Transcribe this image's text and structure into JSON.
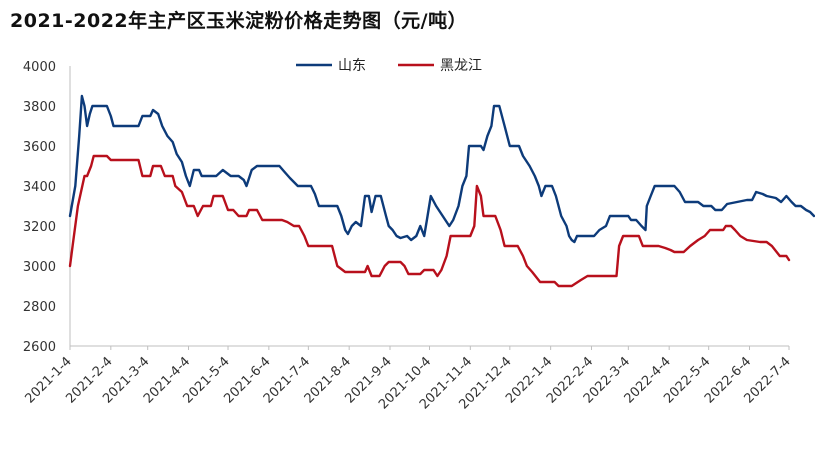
{
  "chart_data": {
    "type": "line",
    "title": "2021-2022年主产区玉米淀粉价格走势图（元/吨）",
    "ylim": [
      2600,
      4000
    ],
    "y_ticks": [
      2600,
      2800,
      3000,
      3200,
      3400,
      3600,
      3800,
      4000
    ],
    "x_range": [
      "2021-01-04",
      "2022-07-04"
    ],
    "x_ticks": [
      "2021-1-4",
      "2021-2-4",
      "2021-3-4",
      "2021-4-4",
      "2021-5-4",
      "2021-6-4",
      "2021-7-4",
      "2021-8-4",
      "2021-9-4",
      "2021-10-4",
      "2021-11-4",
      "2021-12-4",
      "2022-1-4",
      "2022-2-4",
      "2022-3-4",
      "2022-4-4",
      "2022-5-4",
      "2022-6-4",
      "2022-7-4"
    ],
    "grid": false,
    "legend_position": "top-center",
    "series": [
      {
        "name": "山东",
        "color": "#0d3b7a",
        "points": [
          [
            "2021-01-04",
            3250
          ],
          [
            "2021-01-08",
            3400
          ],
          [
            "2021-01-11",
            3650
          ],
          [
            "2021-01-13",
            3850
          ],
          [
            "2021-01-15",
            3800
          ],
          [
            "2021-01-17",
            3700
          ],
          [
            "2021-01-19",
            3760
          ],
          [
            "2021-01-21",
            3800
          ],
          [
            "2021-02-01",
            3800
          ],
          [
            "2021-02-04",
            3750
          ],
          [
            "2021-02-06",
            3700
          ],
          [
            "2021-02-25",
            3700
          ],
          [
            "2021-02-28",
            3750
          ],
          [
            "2021-03-06",
            3750
          ],
          [
            "2021-03-08",
            3780
          ],
          [
            "2021-03-12",
            3760
          ],
          [
            "2021-03-15",
            3700
          ],
          [
            "2021-03-19",
            3650
          ],
          [
            "2021-03-23",
            3620
          ],
          [
            "2021-03-26",
            3560
          ],
          [
            "2021-03-30",
            3520
          ],
          [
            "2021-04-02",
            3450
          ],
          [
            "2021-04-05",
            3400
          ],
          [
            "2021-04-08",
            3480
          ],
          [
            "2021-04-12",
            3480
          ],
          [
            "2021-04-14",
            3450
          ],
          [
            "2021-04-25",
            3450
          ],
          [
            "2021-04-30",
            3480
          ],
          [
            "2021-05-06",
            3450
          ],
          [
            "2021-05-12",
            3450
          ],
          [
            "2021-05-16",
            3430
          ],
          [
            "2021-05-18",
            3400
          ],
          [
            "2021-05-22",
            3480
          ],
          [
            "2021-05-26",
            3500
          ],
          [
            "2021-06-12",
            3500
          ],
          [
            "2021-06-16",
            3470
          ],
          [
            "2021-06-20",
            3440
          ],
          [
            "2021-06-26",
            3400
          ],
          [
            "2021-07-06",
            3400
          ],
          [
            "2021-07-09",
            3360
          ],
          [
            "2021-07-12",
            3300
          ],
          [
            "2021-07-26",
            3300
          ],
          [
            "2021-07-29",
            3250
          ],
          [
            "2021-08-01",
            3180
          ],
          [
            "2021-08-03",
            3160
          ],
          [
            "2021-08-06",
            3200
          ],
          [
            "2021-08-09",
            3220
          ],
          [
            "2021-08-13",
            3200
          ],
          [
            "2021-08-16",
            3350
          ],
          [
            "2021-08-19",
            3350
          ],
          [
            "2021-08-21",
            3270
          ],
          [
            "2021-08-24",
            3350
          ],
          [
            "2021-08-28",
            3350
          ],
          [
            "2021-09-01",
            3250
          ],
          [
            "2021-09-03",
            3200
          ],
          [
            "2021-09-06",
            3180
          ],
          [
            "2021-09-09",
            3150
          ],
          [
            "2021-09-12",
            3140
          ],
          [
            "2021-09-17",
            3150
          ],
          [
            "2021-09-20",
            3130
          ],
          [
            "2021-09-24",
            3150
          ],
          [
            "2021-09-27",
            3200
          ],
          [
            "2021-09-30",
            3150
          ],
          [
            "2021-10-02",
            3230
          ],
          [
            "2021-10-05",
            3350
          ],
          [
            "2021-10-09",
            3300
          ],
          [
            "2021-10-14",
            3250
          ],
          [
            "2021-10-19",
            3200
          ],
          [
            "2021-10-22",
            3230
          ],
          [
            "2021-10-26",
            3300
          ],
          [
            "2021-10-29",
            3400
          ],
          [
            "2021-11-01",
            3450
          ],
          [
            "2021-11-03",
            3600
          ],
          [
            "2021-11-12",
            3600
          ],
          [
            "2021-11-14",
            3580
          ],
          [
            "2021-11-17",
            3650
          ],
          [
            "2021-11-20",
            3700
          ],
          [
            "2021-11-22",
            3800
          ],
          [
            "2021-11-26",
            3800
          ],
          [
            "2021-11-30",
            3700
          ],
          [
            "2021-12-02",
            3650
          ],
          [
            "2021-12-04",
            3600
          ],
          [
            "2021-12-11",
            3600
          ],
          [
            "2021-12-14",
            3550
          ],
          [
            "2021-12-19",
            3500
          ],
          [
            "2021-12-23",
            3450
          ],
          [
            "2021-12-26",
            3400
          ],
          [
            "2021-12-28",
            3350
          ],
          [
            "2021-12-31",
            3400
          ],
          [
            "2022-01-05",
            3400
          ],
          [
            "2022-01-08",
            3350
          ],
          [
            "2022-01-12",
            3250
          ],
          [
            "2022-01-16",
            3200
          ],
          [
            "2022-01-18",
            3150
          ],
          [
            "2022-01-20",
            3130
          ],
          [
            "2022-01-22",
            3120
          ],
          [
            "2022-01-24",
            3150
          ],
          [
            "2022-02-06",
            3150
          ],
          [
            "2022-02-10",
            3180
          ],
          [
            "2022-02-15",
            3200
          ],
          [
            "2022-02-18",
            3250
          ],
          [
            "2022-03-04",
            3250
          ],
          [
            "2022-03-06",
            3230
          ],
          [
            "2022-03-10",
            3230
          ],
          [
            "2022-03-14",
            3200
          ],
          [
            "2022-03-17",
            3180
          ],
          [
            "2022-03-18",
            3300
          ],
          [
            "2022-03-21",
            3350
          ],
          [
            "2022-03-24",
            3400
          ],
          [
            "2022-04-08",
            3400
          ],
          [
            "2022-04-12",
            3370
          ],
          [
            "2022-04-16",
            3320
          ],
          [
            "2022-04-26",
            3320
          ],
          [
            "2022-04-30",
            3300
          ],
          [
            "2022-05-06",
            3300
          ],
          [
            "2022-05-09",
            3280
          ],
          [
            "2022-05-14",
            3280
          ],
          [
            "2022-05-18",
            3310
          ],
          [
            "2022-06-02",
            3330
          ],
          [
            "2022-06-06",
            3330
          ],
          [
            "2022-06-09",
            3370
          ],
          [
            "2022-06-14",
            3360
          ],
          [
            "2022-06-17",
            3350
          ],
          [
            "2022-06-24",
            3340
          ],
          [
            "2022-06-28",
            3320
          ],
          [
            "2022-07-02",
            3350
          ],
          [
            "2022-07-06",
            3320
          ],
          [
            "2022-07-09",
            3300
          ],
          [
            "2022-07-13",
            3300
          ],
          [
            "2022-07-17",
            3280
          ],
          [
            "2022-07-20",
            3270
          ],
          [
            "2022-07-23",
            3250
          ]
        ]
      },
      {
        "name": "黑龙江",
        "color": "#b8101c",
        "points": [
          [
            "2021-01-04",
            3000
          ],
          [
            "2021-01-06",
            3100
          ],
          [
            "2021-01-10",
            3300
          ],
          [
            "2021-01-15",
            3450
          ],
          [
            "2021-01-17",
            3450
          ],
          [
            "2021-01-20",
            3500
          ],
          [
            "2021-01-22",
            3550
          ],
          [
            "2021-02-01",
            3550
          ],
          [
            "2021-02-04",
            3530
          ],
          [
            "2021-02-25",
            3530
          ],
          [
            "2021-02-28",
            3450
          ],
          [
            "2021-03-06",
            3450
          ],
          [
            "2021-03-08",
            3500
          ],
          [
            "2021-03-14",
            3500
          ],
          [
            "2021-03-17",
            3450
          ],
          [
            "2021-03-23",
            3450
          ],
          [
            "2021-03-25",
            3400
          ],
          [
            "2021-03-30",
            3370
          ],
          [
            "2021-04-03",
            3300
          ],
          [
            "2021-04-08",
            3300
          ],
          [
            "2021-04-11",
            3250
          ],
          [
            "2021-04-15",
            3300
          ],
          [
            "2021-04-21",
            3300
          ],
          [
            "2021-04-23",
            3350
          ],
          [
            "2021-04-30",
            3350
          ],
          [
            "2021-05-04",
            3280
          ],
          [
            "2021-05-08",
            3280
          ],
          [
            "2021-05-12",
            3250
          ],
          [
            "2021-05-18",
            3250
          ],
          [
            "2021-05-20",
            3280
          ],
          [
            "2021-05-26",
            3280
          ],
          [
            "2021-05-30",
            3230
          ],
          [
            "2021-06-14",
            3230
          ],
          [
            "2021-06-18",
            3220
          ],
          [
            "2021-06-23",
            3200
          ],
          [
            "2021-06-27",
            3200
          ],
          [
            "2021-07-01",
            3150
          ],
          [
            "2021-07-04",
            3100
          ],
          [
            "2021-07-22",
            3100
          ],
          [
            "2021-07-26",
            3000
          ],
          [
            "2021-08-01",
            2970
          ],
          [
            "2021-08-16",
            2970
          ],
          [
            "2021-08-18",
            3000
          ],
          [
            "2021-08-21",
            2950
          ],
          [
            "2021-08-27",
            2950
          ],
          [
            "2021-08-31",
            3000
          ],
          [
            "2021-09-03",
            3020
          ],
          [
            "2021-09-12",
            3020
          ],
          [
            "2021-09-15",
            3000
          ],
          [
            "2021-09-18",
            2960
          ],
          [
            "2021-09-27",
            2960
          ],
          [
            "2021-09-30",
            2980
          ],
          [
            "2021-10-07",
            2980
          ],
          [
            "2021-10-10",
            2950
          ],
          [
            "2021-10-13",
            2980
          ],
          [
            "2021-10-17",
            3050
          ],
          [
            "2021-10-20",
            3150
          ],
          [
            "2021-11-04",
            3150
          ],
          [
            "2021-11-07",
            3200
          ],
          [
            "2021-11-09",
            3400
          ],
          [
            "2021-11-12",
            3350
          ],
          [
            "2021-11-14",
            3250
          ],
          [
            "2021-11-23",
            3250
          ],
          [
            "2021-11-27",
            3180
          ],
          [
            "2021-11-30",
            3100
          ],
          [
            "2021-12-10",
            3100
          ],
          [
            "2021-12-14",
            3050
          ],
          [
            "2021-12-17",
            3000
          ],
          [
            "2021-12-21",
            2970
          ],
          [
            "2021-12-27",
            2920
          ],
          [
            "2022-01-07",
            2920
          ],
          [
            "2022-01-10",
            2900
          ],
          [
            "2022-01-20",
            2900
          ],
          [
            "2022-01-27",
            2930
          ],
          [
            "2022-02-01",
            2950
          ],
          [
            "2022-02-23",
            2950
          ],
          [
            "2022-02-25",
            3100
          ],
          [
            "2022-02-28",
            3150
          ],
          [
            "2022-03-12",
            3150
          ],
          [
            "2022-03-15",
            3100
          ],
          [
            "2022-03-27",
            3100
          ],
          [
            "2022-04-01",
            3090
          ],
          [
            "2022-04-05",
            3080
          ],
          [
            "2022-04-08",
            3070
          ],
          [
            "2022-04-15",
            3070
          ],
          [
            "2022-04-20",
            3100
          ],
          [
            "2022-04-26",
            3130
          ],
          [
            "2022-05-01",
            3150
          ],
          [
            "2022-05-05",
            3180
          ],
          [
            "2022-05-15",
            3180
          ],
          [
            "2022-05-17",
            3200
          ],
          [
            "2022-05-21",
            3200
          ],
          [
            "2022-05-24",
            3180
          ],
          [
            "2022-05-28",
            3150
          ],
          [
            "2022-06-02",
            3130
          ],
          [
            "2022-06-12",
            3120
          ],
          [
            "2022-06-17",
            3120
          ],
          [
            "2022-06-21",
            3100
          ],
          [
            "2022-06-27",
            3050
          ],
          [
            "2022-07-02",
            3050
          ],
          [
            "2022-07-04",
            3030
          ]
        ]
      }
    ]
  }
}
